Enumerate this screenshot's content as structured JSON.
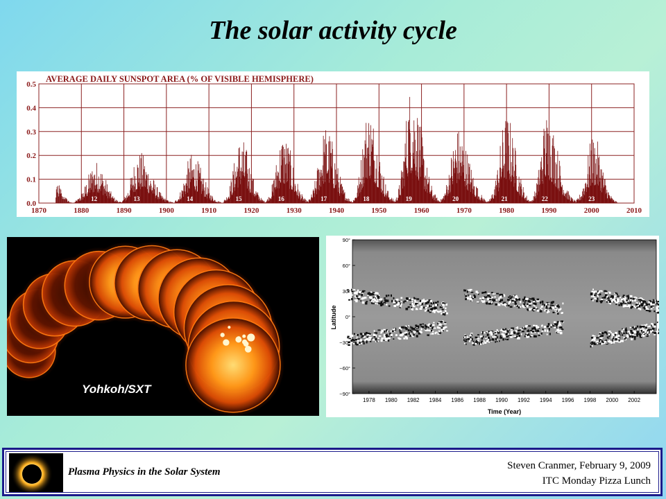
{
  "slide": {
    "title": "The solar activity cycle"
  },
  "sunspot_chart": {
    "title": "AVERAGE DAILY SUNSPOT AREA (% OF VISIBLE HEMISPHERE)",
    "y_ticks": [
      "0.0",
      "0.1",
      "0.2",
      "0.3",
      "0.4",
      "0.5"
    ],
    "x_ticks": [
      "1870",
      "1880",
      "1890",
      "1900",
      "1910",
      "1920",
      "1930",
      "1940",
      "1950",
      "1960",
      "1970",
      "1980",
      "1990",
      "2000",
      "2010"
    ],
    "colors": {
      "bars": "#7a1010",
      "grid": "#8b2020",
      "text": "#8b1a1a"
    }
  },
  "chart_data": {
    "type": "bar",
    "xlabel": "",
    "ylabel": "",
    "xlim": [
      1870,
      2010
    ],
    "ylim": [
      0,
      0.5
    ],
    "cycles": [
      {
        "label": "12",
        "peak_year": 1883.5,
        "peak_value": 0.18,
        "start": 1878.5,
        "end": 1889.5
      },
      {
        "label": "13",
        "peak_year": 1893.5,
        "peak_value": 0.22,
        "start": 1889.5,
        "end": 1901.5
      },
      {
        "label": "14",
        "peak_year": 1906,
        "peak_value": 0.21,
        "start": 1902,
        "end": 1913
      },
      {
        "label": "15",
        "peak_year": 1917.5,
        "peak_value": 0.28,
        "start": 1913.5,
        "end": 1923.5
      },
      {
        "label": "16",
        "peak_year": 1927.5,
        "peak_value": 0.3,
        "start": 1923.5,
        "end": 1933.5
      },
      {
        "label": "17",
        "peak_year": 1937.5,
        "peak_value": 0.33,
        "start": 1933.5,
        "end": 1944
      },
      {
        "label": "18",
        "peak_year": 1947.5,
        "peak_value": 0.41,
        "start": 1944,
        "end": 1954
      },
      {
        "label": "19",
        "peak_year": 1957.5,
        "peak_value": 0.5,
        "start": 1954,
        "end": 1964.5
      },
      {
        "label": "20",
        "peak_year": 1968.5,
        "peak_value": 0.32,
        "start": 1964.5,
        "end": 1976
      },
      {
        "label": "21",
        "peak_year": 1980,
        "peak_value": 0.38,
        "start": 1976,
        "end": 1986
      },
      {
        "label": "22",
        "peak_year": 1989.5,
        "peak_value": 0.39,
        "start": 1986,
        "end": 1996.5
      },
      {
        "label": "23",
        "peak_year": 2000.5,
        "peak_value": 0.29,
        "start": 1996.5,
        "end": 2006
      }
    ]
  },
  "images": {
    "yohkoh_label": "Yohkoh/SXT"
  },
  "butterfly_chart": {
    "ylabel": "Latitude",
    "xlabel": "Time (Year)",
    "y_ticks": [
      "90°",
      "60°",
      "30°",
      "0°",
      "−30°",
      "−60°",
      "−90°"
    ],
    "x_ticks": [
      "1978",
      "1980",
      "1982",
      "1984",
      "1986",
      "1988",
      "1990",
      "1992",
      "1994",
      "1996",
      "1998",
      "2000",
      "2002"
    ]
  },
  "footer": {
    "course": "Plasma Physics in the Solar System",
    "author_line1": "Steven Cranmer,  February 9, 2009",
    "author_line2": "ITC Monday Pizza Lunch"
  }
}
